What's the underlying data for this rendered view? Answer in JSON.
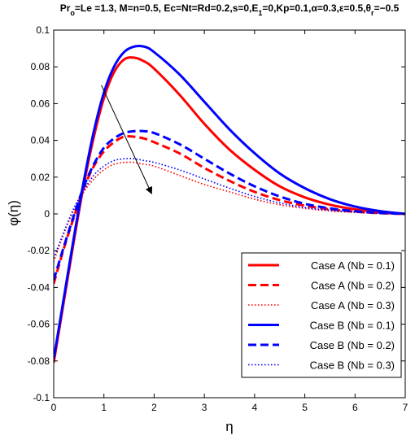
{
  "chart_data": {
    "type": "line",
    "title_parts": [
      {
        "t": "Pr",
        "s": "base"
      },
      {
        "t": "o",
        "s": "sub"
      },
      {
        "t": "=Le =1.3, M=n=0.5, Ec=Nt=Rd=0.2,s=0,E",
        "s": "base"
      },
      {
        "t": "1",
        "s": "sub"
      },
      {
        "t": "=0,Kp=0.1,α=0.3,ε=0.5,θ",
        "s": "base"
      },
      {
        "t": "r",
        "s": "sub"
      },
      {
        "t": "=−0.5",
        "s": "base"
      }
    ],
    "xlabel": "η",
    "ylabel": "φ(η)",
    "xlim": [
      0,
      7
    ],
    "ylim": [
      -0.1,
      0.1
    ],
    "x_ticks": [
      0,
      1,
      2,
      3,
      4,
      5,
      6,
      7
    ],
    "x_tick_labels": [
      "0",
      "1",
      "2",
      "3",
      "4",
      "5",
      "6",
      "7"
    ],
    "y_ticks": [
      -0.1,
      -0.08,
      -0.06,
      -0.04,
      -0.02,
      0,
      0.02,
      0.04,
      0.06,
      0.08,
      0.1
    ],
    "y_tick_labels": [
      "-0.1",
      "-0.08",
      "-0.06",
      "-0.04",
      "-0.02",
      "0",
      "0.02",
      "0.04",
      "0.06",
      "0.08",
      "0.1"
    ],
    "grid": false,
    "legend_position": "bottom-right",
    "annotation": {
      "type": "arrow",
      "from": [
        0.95,
        0.07
      ],
      "to": [
        1.95,
        0.011
      ]
    },
    "series": [
      {
        "name": "Case A (Nb = 0.1)",
        "color": "#ff0000",
        "style": "solid",
        "width": 3,
        "x": [
          0,
          0.2,
          0.4,
          0.6,
          0.8,
          1.0,
          1.2,
          1.4,
          1.6,
          1.8,
          2.0,
          2.5,
          3.0,
          3.5,
          4.0,
          4.5,
          5.0,
          5.5,
          6.0,
          6.5,
          7.0
        ],
        "y": [
          -0.081,
          -0.048,
          -0.015,
          0.016,
          0.042,
          0.063,
          0.077,
          0.084,
          0.085,
          0.083,
          0.079,
          0.065,
          0.049,
          0.035,
          0.024,
          0.015,
          0.009,
          0.005,
          0.0025,
          0.001,
          0
        ]
      },
      {
        "name": "Case A (Nb = 0.2)",
        "color": "#ff0000",
        "style": "dashed",
        "width": 3,
        "x": [
          0,
          0.2,
          0.4,
          0.6,
          0.8,
          1.0,
          1.2,
          1.4,
          1.6,
          1.8,
          2.0,
          2.5,
          3.0,
          3.5,
          4.0,
          4.5,
          5.0,
          5.5,
          6.0,
          6.5,
          7.0
        ],
        "y": [
          -0.038,
          -0.019,
          -0.002,
          0.014,
          0.026,
          0.034,
          0.039,
          0.042,
          0.042,
          0.041,
          0.039,
          0.033,
          0.025,
          0.018,
          0.012,
          0.0075,
          0.0045,
          0.0025,
          0.0012,
          0.0004,
          0
        ]
      },
      {
        "name": "Case A (Nb = 0.3)",
        "color": "#ff0000",
        "style": "dotted",
        "width": 1.6,
        "x": [
          0,
          0.2,
          0.4,
          0.6,
          0.8,
          1.0,
          1.2,
          1.4,
          1.6,
          1.8,
          2.0,
          2.5,
          3.0,
          3.5,
          4.0,
          4.5,
          5.0,
          5.5,
          6.0,
          6.5,
          7.0
        ],
        "y": [
          -0.026,
          -0.011,
          0.002,
          0.012,
          0.019,
          0.024,
          0.027,
          0.028,
          0.028,
          0.027,
          0.026,
          0.021,
          0.016,
          0.012,
          0.008,
          0.005,
          0.003,
          0.0016,
          0.0008,
          0.0003,
          0
        ]
      },
      {
        "name": "Case B (Nb = 0.1)",
        "color": "#0000ff",
        "style": "solid",
        "width": 3,
        "x": [
          0,
          0.2,
          0.4,
          0.6,
          0.8,
          1.0,
          1.2,
          1.4,
          1.6,
          1.8,
          2.0,
          2.5,
          3.0,
          3.5,
          4.0,
          4.5,
          5.0,
          5.5,
          6.0,
          6.5,
          7.0
        ],
        "y": [
          -0.079,
          -0.046,
          -0.013,
          0.018,
          0.045,
          0.066,
          0.08,
          0.088,
          0.091,
          0.091,
          0.088,
          0.076,
          0.061,
          0.046,
          0.033,
          0.022,
          0.014,
          0.008,
          0.004,
          0.0015,
          0
        ]
      },
      {
        "name": "Case B (Nb = 0.2)",
        "color": "#0000ff",
        "style": "dashed",
        "width": 3,
        "x": [
          0,
          0.2,
          0.4,
          0.6,
          0.8,
          1.0,
          1.2,
          1.4,
          1.6,
          1.8,
          2.0,
          2.5,
          3.0,
          3.5,
          4.0,
          4.5,
          5.0,
          5.5,
          6.0,
          6.5,
          7.0
        ],
        "y": [
          -0.036,
          -0.018,
          -0.001,
          0.015,
          0.027,
          0.036,
          0.041,
          0.044,
          0.045,
          0.045,
          0.044,
          0.038,
          0.03,
          0.022,
          0.015,
          0.0095,
          0.0055,
          0.003,
          0.0015,
          0.0005,
          0
        ]
      },
      {
        "name": "Case B (Nb = 0.3)",
        "color": "#0000ff",
        "style": "dotted",
        "width": 1.6,
        "x": [
          0,
          0.2,
          0.4,
          0.6,
          0.8,
          1.0,
          1.2,
          1.4,
          1.6,
          1.8,
          2.0,
          2.5,
          3.0,
          3.5,
          4.0,
          4.5,
          5.0,
          5.5,
          6.0,
          6.5,
          7.0
        ],
        "y": [
          -0.024,
          -0.01,
          0.003,
          0.013,
          0.021,
          0.026,
          0.029,
          0.03,
          0.03,
          0.029,
          0.028,
          0.024,
          0.019,
          0.014,
          0.0095,
          0.006,
          0.0035,
          0.002,
          0.001,
          0.0003,
          0
        ]
      }
    ]
  }
}
